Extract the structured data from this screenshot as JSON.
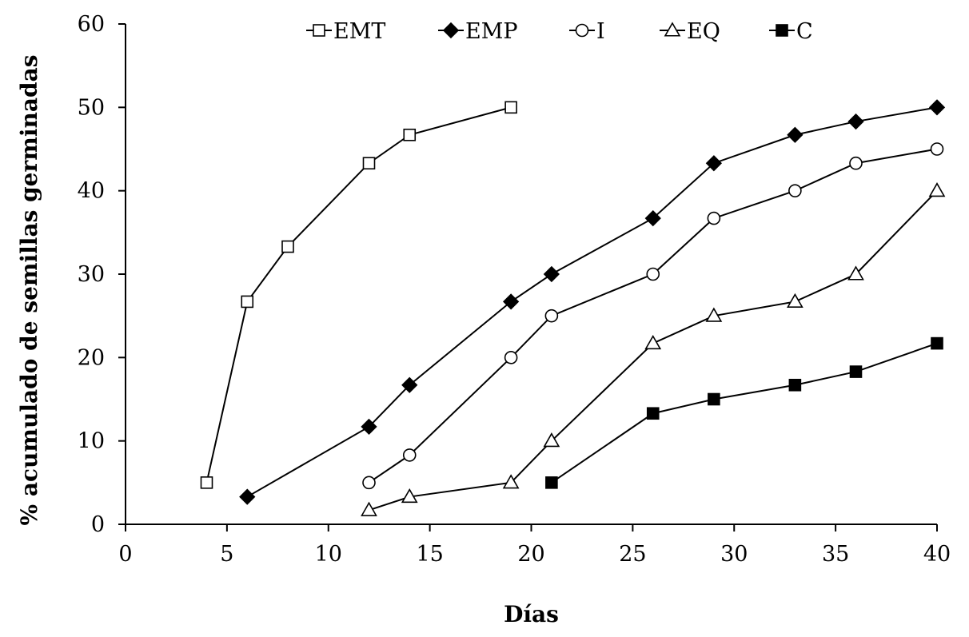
{
  "chart_data": {
    "type": "line",
    "title": "",
    "xlabel": "Días",
    "ylabel": "% acumulado de semillas germinadas",
    "xlim": [
      0,
      40
    ],
    "ylim": [
      0,
      60
    ],
    "xticks": [
      0,
      5,
      10,
      15,
      20,
      25,
      30,
      35,
      40
    ],
    "yticks": [
      0,
      10,
      20,
      30,
      40,
      50,
      60
    ],
    "grid": false,
    "legend_position": "top",
    "series": [
      {
        "name": "EMT",
        "marker": "open-square",
        "x": [
          4,
          6,
          8,
          12,
          14,
          19
        ],
        "y": [
          5,
          26.7,
          33.3,
          43.3,
          46.7,
          50
        ]
      },
      {
        "name": "EMP",
        "marker": "filled-diamond",
        "x": [
          6,
          12,
          14,
          19,
          21,
          26,
          29,
          33,
          36,
          40
        ],
        "y": [
          3.3,
          11.7,
          16.7,
          26.7,
          30,
          36.7,
          43.3,
          46.7,
          48.3,
          50
        ]
      },
      {
        "name": "I",
        "marker": "open-circle",
        "x": [
          12,
          14,
          19,
          21,
          26,
          29,
          33,
          36,
          40
        ],
        "y": [
          5,
          8.3,
          20,
          25,
          30,
          36.7,
          40,
          43.3,
          45
        ]
      },
      {
        "name": "EQ",
        "marker": "open-triangle",
        "x": [
          12,
          14,
          19,
          21,
          26,
          29,
          33,
          36,
          40
        ],
        "y": [
          1.7,
          3.3,
          5,
          10,
          21.7,
          25,
          26.7,
          30,
          40
        ]
      },
      {
        "name": "C",
        "marker": "filled-square",
        "x": [
          21,
          26,
          29,
          33,
          36,
          40
        ],
        "y": [
          5,
          13.3,
          15,
          16.7,
          18.3,
          21.7
        ]
      }
    ]
  }
}
